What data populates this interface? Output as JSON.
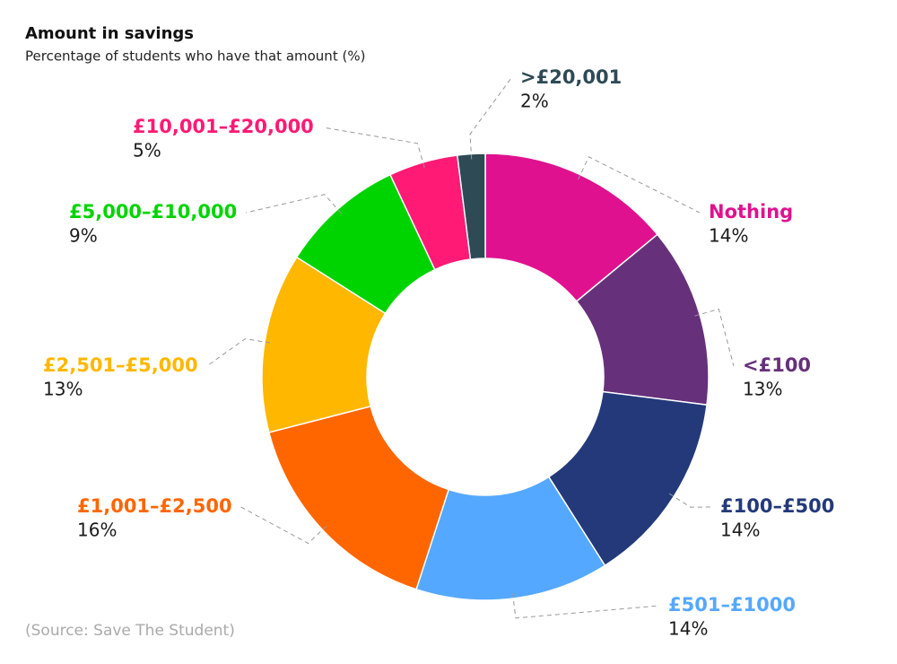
{
  "chart_data": {
    "type": "donut",
    "title": "Amount in savings",
    "subtitle": "Percentage of students who have that amount (%)",
    "categories": [
      "Nothing",
      "<£100",
      "£100–£500",
      "£501–£1000",
      "£1,001–£2,500",
      "£2,501–£5,000",
      "£5,000–£10,000",
      "£10,001–£20,000",
      ">£20,001"
    ],
    "values": [
      14,
      13,
      14,
      14,
      16,
      13,
      9,
      5,
      2
    ],
    "value_labels": [
      "14%",
      "13%",
      "14%",
      "14%",
      "16%",
      "13%",
      "9%",
      "5%",
      "2%"
    ],
    "colors": [
      "#e0118f",
      "#66307a",
      "#24397a",
      "#55a8ff",
      "#ff6600",
      "#ffb700",
      "#00d400",
      "#ff1a75",
      "#2e4a55"
    ],
    "source": "(Source: Save The Student)"
  }
}
